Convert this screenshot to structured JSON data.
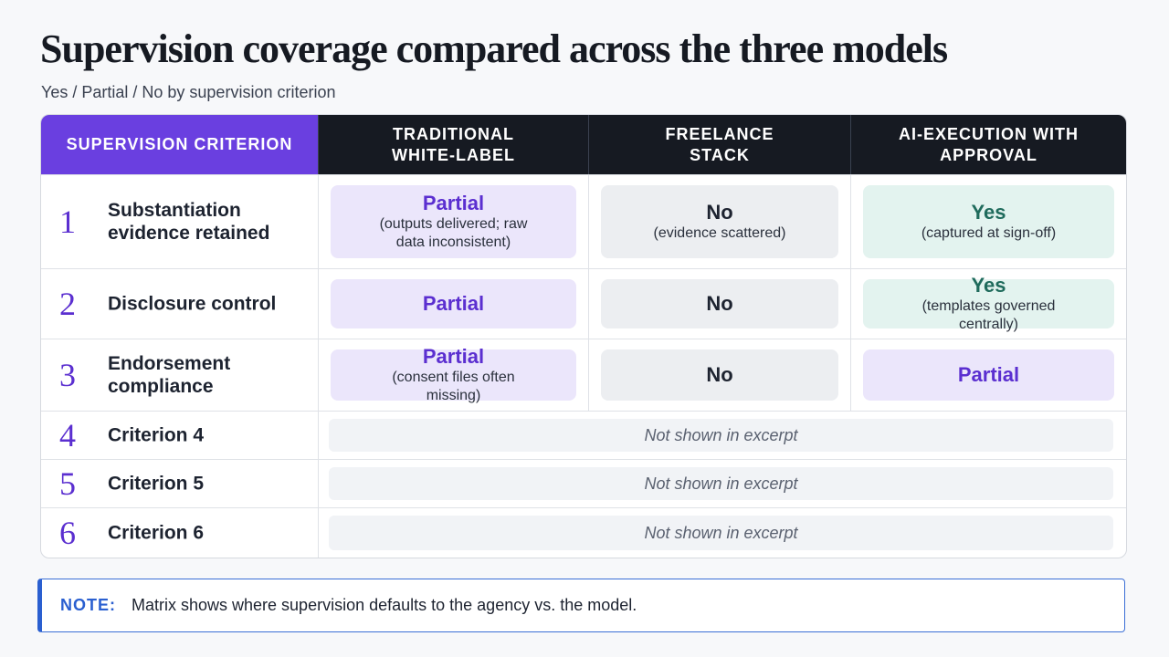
{
  "header": {
    "title": "Supervision coverage compared across the three models",
    "subtitle": "Yes / Partial / No by supervision criterion"
  },
  "table": {
    "headers": [
      "SUPERVISION CRITERION",
      "TRADITIONAL WHITE-LABEL",
      "FREELANCE STACK",
      "AI-EXECUTION WITH APPROVAL"
    ],
    "rows": [
      {
        "number": "1",
        "criterion": "Substantiation evidence retained",
        "cells": [
          {
            "verdict": "Partial",
            "detail": "(outputs delivered; raw data inconsistent)",
            "color": "#5b2fd0",
            "background": "#ebe6fb"
          },
          {
            "verdict": "No",
            "detail": "(evidence scattered)",
            "color": "#1d2330",
            "background": "#eceef1"
          },
          {
            "verdict": "Yes",
            "detail": "(captured at sign-off)",
            "color": "#1f6b5c",
            "background": "#e3f3ef"
          }
        ]
      },
      {
        "number": "2",
        "criterion": "Disclosure control",
        "cells": [
          {
            "verdict": "Partial",
            "color": "#5b2fd0",
            "background": "#ebe6fb"
          },
          {
            "verdict": "No",
            "color": "#1d2330",
            "background": "#eceef1"
          },
          {
            "verdict": "Yes",
            "detail": "(templates governed centrally)",
            "color": "#1f6b5c",
            "background": "#e3f3ef"
          }
        ]
      },
      {
        "number": "3",
        "criterion": "Endorsement compliance",
        "cells": [
          {
            "verdict": "Partial",
            "detail": "(consent files often missing)",
            "color": "#5b2fd0",
            "background": "#ebe6fb"
          },
          {
            "verdict": "No",
            "color": "#1d2330",
            "background": "#eceef1"
          },
          {
            "verdict": "Partial",
            "color": "#5b2fd0",
            "background": "#ebe6fb"
          }
        ]
      },
      {
        "number": "4",
        "criterion": "Criterion 4",
        "note": "Not shown in excerpt"
      },
      {
        "number": "5",
        "criterion": "Criterion 5",
        "note": "Not shown in excerpt"
      },
      {
        "number": "6",
        "criterion": "Criterion 6",
        "note": "Not shown in excerpt"
      }
    ]
  },
  "note": {
    "label": "NOTE:",
    "text": "Matrix shows where supervision defaults to the agency vs. the model."
  }
}
